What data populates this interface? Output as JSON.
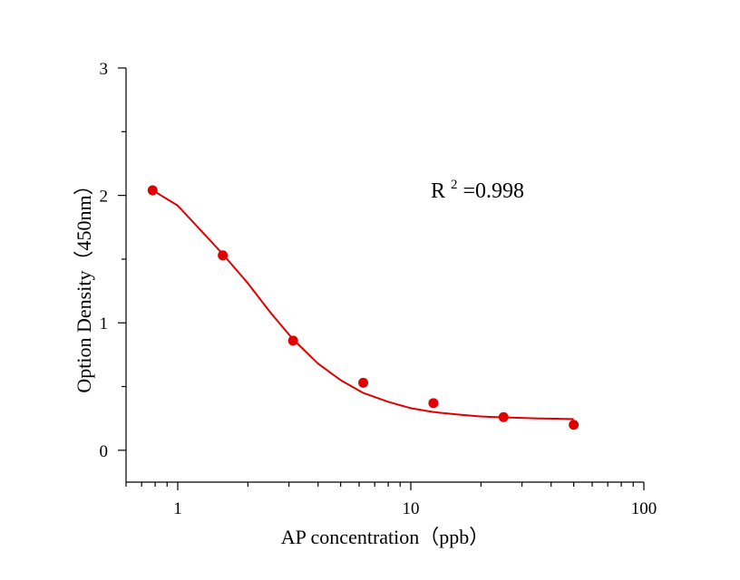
{
  "chart_data": {
    "type": "scatter",
    "title": "",
    "xlabel": "AP concentration（ppb）",
    "ylabel": "Option Density（450nm）",
    "x_scale": "log",
    "xlim": [
      0.6,
      100
    ],
    "ylim": [
      -0.25,
      3
    ],
    "x_ticks": [
      1,
      10,
      100
    ],
    "x_tick_labels": [
      "1",
      "10",
      "100"
    ],
    "y_ticks": [
      0,
      1,
      2,
      3
    ],
    "y_tick_labels": [
      "0",
      "1",
      "2",
      "3"
    ],
    "grid": false,
    "legend": "none",
    "series": [
      {
        "marker_color": "#e00000",
        "points": [
          {
            "x": 0.78,
            "y": 2.04
          },
          {
            "x": 1.56,
            "y": 1.53
          },
          {
            "x": 3.125,
            "y": 0.86
          },
          {
            "x": 6.25,
            "y": 0.53
          },
          {
            "x": 12.5,
            "y": 0.37
          },
          {
            "x": 25,
            "y": 0.26
          },
          {
            "x": 50,
            "y": 0.2
          }
        ]
      }
    ],
    "fit_curve": {
      "color": "#e00000",
      "x_range": [
        0.78,
        50
      ],
      "points": [
        {
          "x": 0.78,
          "y": 2.04
        },
        {
          "x": 1.0,
          "y": 1.92
        },
        {
          "x": 1.56,
          "y": 1.54
        },
        {
          "x": 2.0,
          "y": 1.31
        },
        {
          "x": 2.5,
          "y": 1.08
        },
        {
          "x": 3.125,
          "y": 0.87
        },
        {
          "x": 4.0,
          "y": 0.68
        },
        {
          "x": 5.0,
          "y": 0.55
        },
        {
          "x": 6.25,
          "y": 0.45
        },
        {
          "x": 8.0,
          "y": 0.38
        },
        {
          "x": 10.0,
          "y": 0.33
        },
        {
          "x": 12.5,
          "y": 0.3
        },
        {
          "x": 16.0,
          "y": 0.28
        },
        {
          "x": 20.0,
          "y": 0.265
        },
        {
          "x": 25.0,
          "y": 0.258
        },
        {
          "x": 35.0,
          "y": 0.25
        },
        {
          "x": 50.0,
          "y": 0.245
        }
      ]
    },
    "annotation": {
      "prefix": "R",
      "superscript": "2",
      "suffix": "=0.998"
    }
  }
}
